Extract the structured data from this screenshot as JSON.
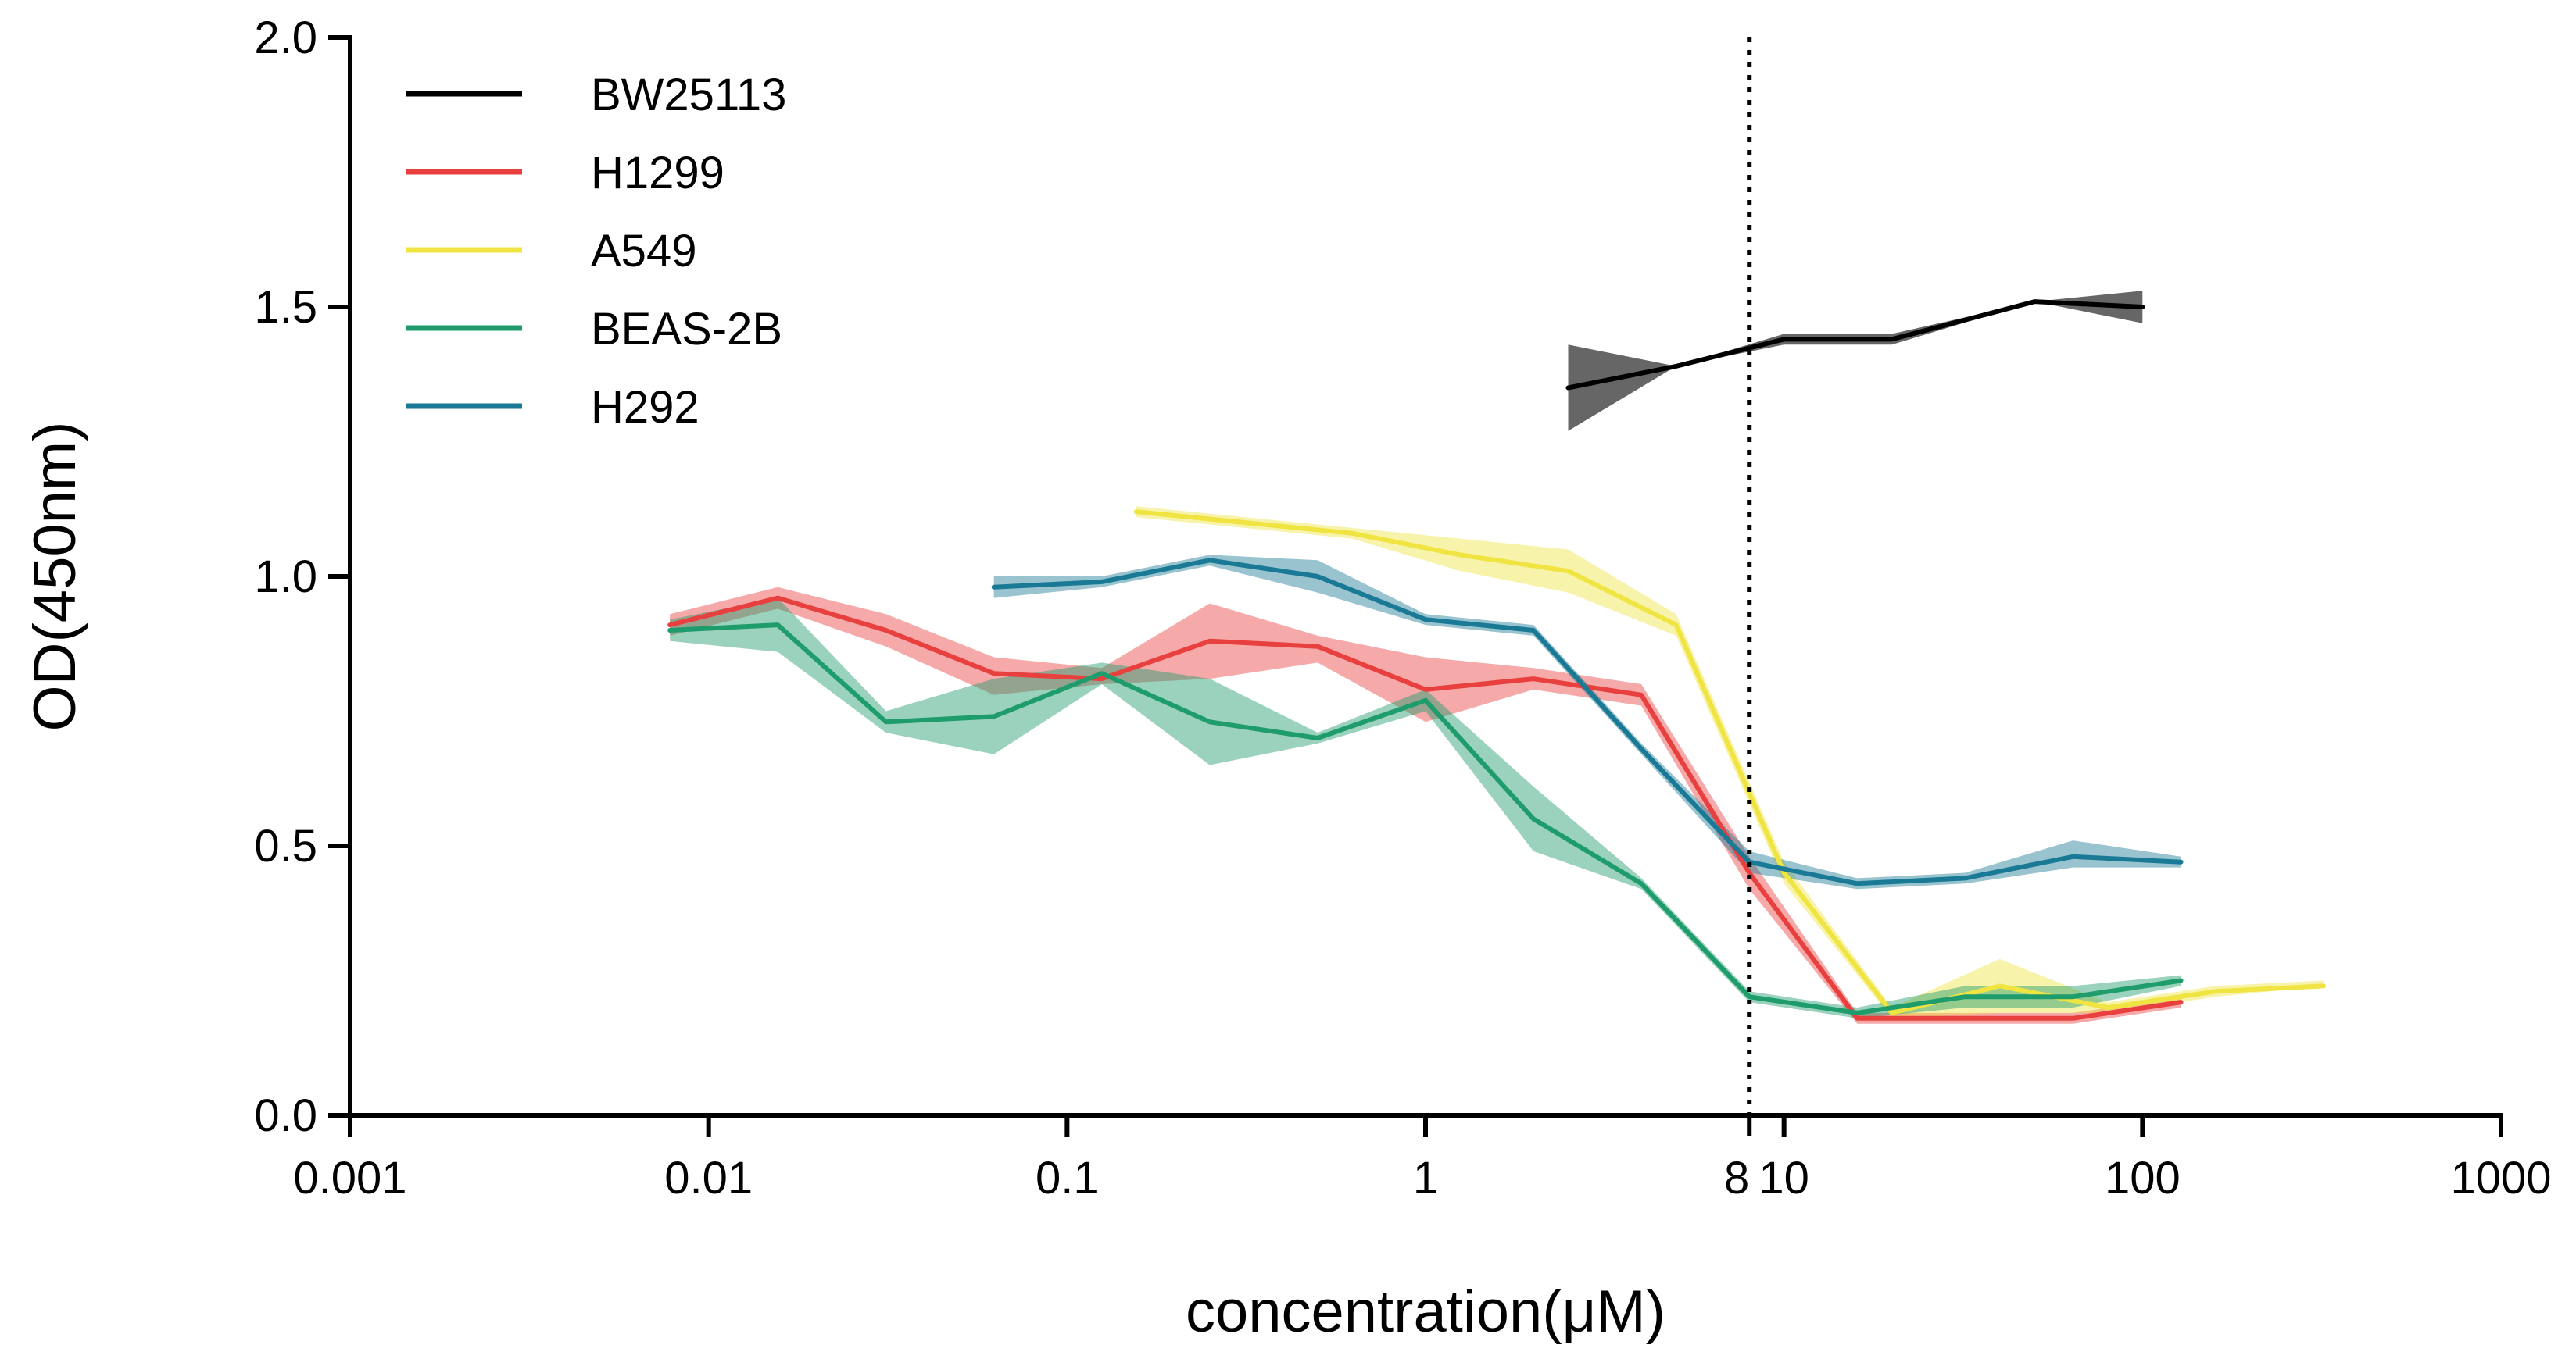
{
  "chart_data": {
    "type": "line",
    "title": "",
    "xlabel": "concentration(μM)",
    "ylabel": "OD(450nm)",
    "xscale": "log",
    "xlim": [
      0.001,
      1000
    ],
    "ylim": [
      0,
      2.0
    ],
    "xticks": [
      0.001,
      0.01,
      0.1,
      1,
      10,
      100,
      1000
    ],
    "xtick_labels": [
      "0.001",
      "0.01",
      "0.1",
      "1",
      "10",
      "100",
      "1000"
    ],
    "yticks": [
      0.0,
      0.5,
      1.0,
      1.5,
      2.0
    ],
    "ytick_labels": [
      "0.0",
      "0.5",
      "1.0",
      "1.5",
      "2.0"
    ],
    "reference_line": {
      "x": 8,
      "label": "8",
      "style": "dotted"
    },
    "legend_position": "top-left",
    "grid": false,
    "series": [
      {
        "name": "BW25113",
        "color": "#000000",
        "band_color": "#333333",
        "x": [
          2.5,
          5,
          10,
          20,
          50,
          100
        ],
        "y": [
          1.35,
          1.39,
          1.44,
          1.44,
          1.51,
          1.5
        ],
        "lower": [
          1.27,
          1.39,
          1.43,
          1.43,
          1.51,
          1.47
        ],
        "upper": [
          1.43,
          1.39,
          1.45,
          1.45,
          1.51,
          1.53
        ]
      },
      {
        "name": "H1299",
        "color": "#e8403f",
        "band_color": "#e8403f",
        "x": [
          0.0078,
          0.0156,
          0.03125,
          0.0625,
          0.125,
          0.25,
          0.5,
          1,
          2,
          4,
          8,
          16,
          32,
          64,
          128
        ],
        "y": [
          0.91,
          0.96,
          0.9,
          0.82,
          0.81,
          0.88,
          0.87,
          0.79,
          0.81,
          0.78,
          0.45,
          0.18,
          0.18,
          0.18,
          0.21
        ],
        "lower": [
          0.89,
          0.94,
          0.87,
          0.78,
          0.8,
          0.81,
          0.84,
          0.73,
          0.79,
          0.76,
          0.42,
          0.17,
          0.17,
          0.17,
          0.2
        ],
        "upper": [
          0.93,
          0.98,
          0.93,
          0.85,
          0.83,
          0.95,
          0.89,
          0.85,
          0.83,
          0.8,
          0.48,
          0.19,
          0.19,
          0.19,
          0.22
        ]
      },
      {
        "name": "A549",
        "color": "#f0e442",
        "band_color": "#f0e442",
        "x": [
          0.156,
          0.3125,
          0.625,
          1.25,
          2.5,
          5,
          10,
          20,
          40,
          80,
          160,
          320
        ],
        "y": [
          1.12,
          1.1,
          1.08,
          1.04,
          1.01,
          0.91,
          0.45,
          0.19,
          0.24,
          0.2,
          0.23,
          0.24
        ],
        "lower": [
          1.11,
          1.09,
          1.07,
          1.01,
          0.97,
          0.89,
          0.43,
          0.18,
          0.19,
          0.19,
          0.22,
          0.24
        ],
        "upper": [
          1.13,
          1.11,
          1.09,
          1.07,
          1.05,
          0.93,
          0.47,
          0.2,
          0.29,
          0.21,
          0.24,
          0.25
        ]
      },
      {
        "name": "BEAS-2B",
        "color": "#1f9c6c",
        "band_color": "#1f9c6c",
        "x": [
          0.0078,
          0.0156,
          0.03125,
          0.0625,
          0.125,
          0.25,
          0.5,
          1,
          2,
          4,
          8,
          16,
          32,
          64,
          128
        ],
        "y": [
          0.9,
          0.91,
          0.73,
          0.74,
          0.82,
          0.73,
          0.7,
          0.77,
          0.55,
          0.43,
          0.22,
          0.19,
          0.22,
          0.22,
          0.25
        ],
        "lower": [
          0.88,
          0.86,
          0.71,
          0.67,
          0.8,
          0.65,
          0.69,
          0.75,
          0.49,
          0.42,
          0.21,
          0.18,
          0.2,
          0.2,
          0.24
        ],
        "upper": [
          0.92,
          0.96,
          0.75,
          0.81,
          0.84,
          0.81,
          0.71,
          0.79,
          0.61,
          0.44,
          0.23,
          0.2,
          0.24,
          0.24,
          0.26
        ]
      },
      {
        "name": "H292",
        "color": "#1a7a95",
        "band_color": "#1a7a95",
        "x": [
          0.0625,
          0.125,
          0.25,
          0.5,
          1,
          2,
          4,
          8,
          16,
          32,
          64,
          128
        ],
        "y": [
          0.98,
          0.99,
          1.03,
          1.0,
          0.92,
          0.9,
          0.68,
          0.47,
          0.43,
          0.44,
          0.48,
          0.47
        ],
        "lower": [
          0.96,
          0.98,
          1.02,
          0.97,
          0.91,
          0.89,
          0.67,
          0.45,
          0.42,
          0.43,
          0.46,
          0.46
        ],
        "upper": [
          1.0,
          1.0,
          1.04,
          1.03,
          0.93,
          0.91,
          0.69,
          0.49,
          0.44,
          0.45,
          0.51,
          0.48
        ]
      }
    ]
  }
}
